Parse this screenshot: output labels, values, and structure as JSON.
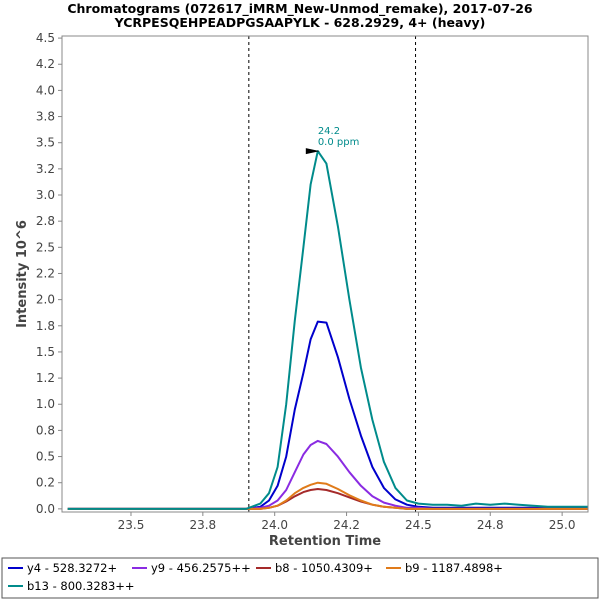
{
  "chart_data": {
    "type": "line",
    "title": "Chromatograms (072617_iMRM_New-Unmod_remake), 2017-07-26",
    "subtitle": "YCRPESQEHPEADPGSAAPYLK - 628.2929, 4+ (heavy)",
    "xlabel": "Retention Time",
    "ylabel": "Intensity 10^6",
    "xlim": [
      23.26,
      25.09
    ],
    "ylim": [
      -0.03,
      4.52
    ],
    "xticks": [
      "23.5",
      "23.8",
      "24.0",
      "24.2",
      "24.5",
      "24.8",
      "25.0"
    ],
    "yticks": [
      "0.0",
      "0.2",
      "0.5",
      "0.8",
      "1.0",
      "1.2",
      "1.5",
      "1.8",
      "2.0",
      "2.2",
      "2.5",
      "2.8",
      "3.0",
      "3.2",
      "3.5",
      "3.8",
      "4.0",
      "4.2",
      "4.5"
    ],
    "integration_boundaries": [
      23.91,
      24.49
    ],
    "annotation": {
      "x": 24.15,
      "y": 3.42,
      "label": "24.2",
      "sublabel": "0.0 ppm"
    },
    "x": [
      23.28,
      23.4,
      23.5,
      23.6,
      23.7,
      23.8,
      23.9,
      23.95,
      23.98,
      24.01,
      24.04,
      24.07,
      24.1,
      24.125,
      24.15,
      24.18,
      24.22,
      24.26,
      24.3,
      24.34,
      24.38,
      24.42,
      24.46,
      24.5,
      24.55,
      24.6,
      24.65,
      24.7,
      24.75,
      24.8,
      24.85,
      24.9,
      24.95,
      25.0,
      25.05,
      25.09
    ],
    "series": [
      {
        "name": "y4 - 528.3272+",
        "color": "#0000cc",
        "values": [
          0,
          0,
          0,
          0,
          0,
          0,
          0,
          0.02,
          0.08,
          0.22,
          0.5,
          0.95,
          1.3,
          1.62,
          1.79,
          1.78,
          1.45,
          1.05,
          0.7,
          0.4,
          0.2,
          0.09,
          0.04,
          0.02,
          0.01,
          0.01,
          0.01,
          0.01,
          0.01,
          0.01,
          0.01,
          0.01,
          0.01,
          0.01,
          0.01,
          0.01
        ]
      },
      {
        "name": "y9 - 456.2575++",
        "color": "#8a2be2",
        "values": [
          0,
          0,
          0,
          0,
          0,
          0,
          0,
          0.01,
          0.03,
          0.08,
          0.18,
          0.35,
          0.52,
          0.61,
          0.65,
          0.62,
          0.5,
          0.35,
          0.22,
          0.12,
          0.06,
          0.03,
          0.01,
          0.01,
          0,
          0,
          0,
          0,
          0,
          0,
          0,
          0,
          0,
          0,
          0,
          0
        ]
      },
      {
        "name": "b8 - 1050.4309+",
        "color": "#a52a2a",
        "values": [
          0,
          0,
          0,
          0,
          0,
          0,
          0,
          0,
          0.01,
          0.03,
          0.07,
          0.12,
          0.16,
          0.18,
          0.19,
          0.18,
          0.15,
          0.11,
          0.07,
          0.04,
          0.02,
          0.01,
          0,
          0,
          0,
          0,
          0,
          0,
          0,
          0,
          0,
          0,
          0,
          0,
          0,
          0
        ]
      },
      {
        "name": "b9 - 1187.4898+",
        "color": "#e07b1a",
        "values": [
          0,
          0,
          0,
          0,
          0,
          0,
          0,
          0,
          0.01,
          0.03,
          0.08,
          0.15,
          0.2,
          0.23,
          0.25,
          0.24,
          0.19,
          0.13,
          0.08,
          0.04,
          0.02,
          0.01,
          0,
          0,
          0,
          0,
          0,
          0,
          0,
          0,
          0,
          0,
          0,
          0,
          0,
          0
        ]
      },
      {
        "name": "b13 - 800.3283++",
        "color": "#008b8b",
        "values": [
          0,
          0,
          0,
          0,
          0,
          0,
          0,
          0.05,
          0.15,
          0.4,
          1.0,
          1.8,
          2.5,
          3.1,
          3.42,
          3.3,
          2.7,
          2.0,
          1.35,
          0.85,
          0.45,
          0.2,
          0.08,
          0.05,
          0.04,
          0.04,
          0.03,
          0.05,
          0.04,
          0.05,
          0.04,
          0.03,
          0.02,
          0.02,
          0.02,
          0.02
        ]
      }
    ],
    "grid": false,
    "legend": "bottom"
  }
}
